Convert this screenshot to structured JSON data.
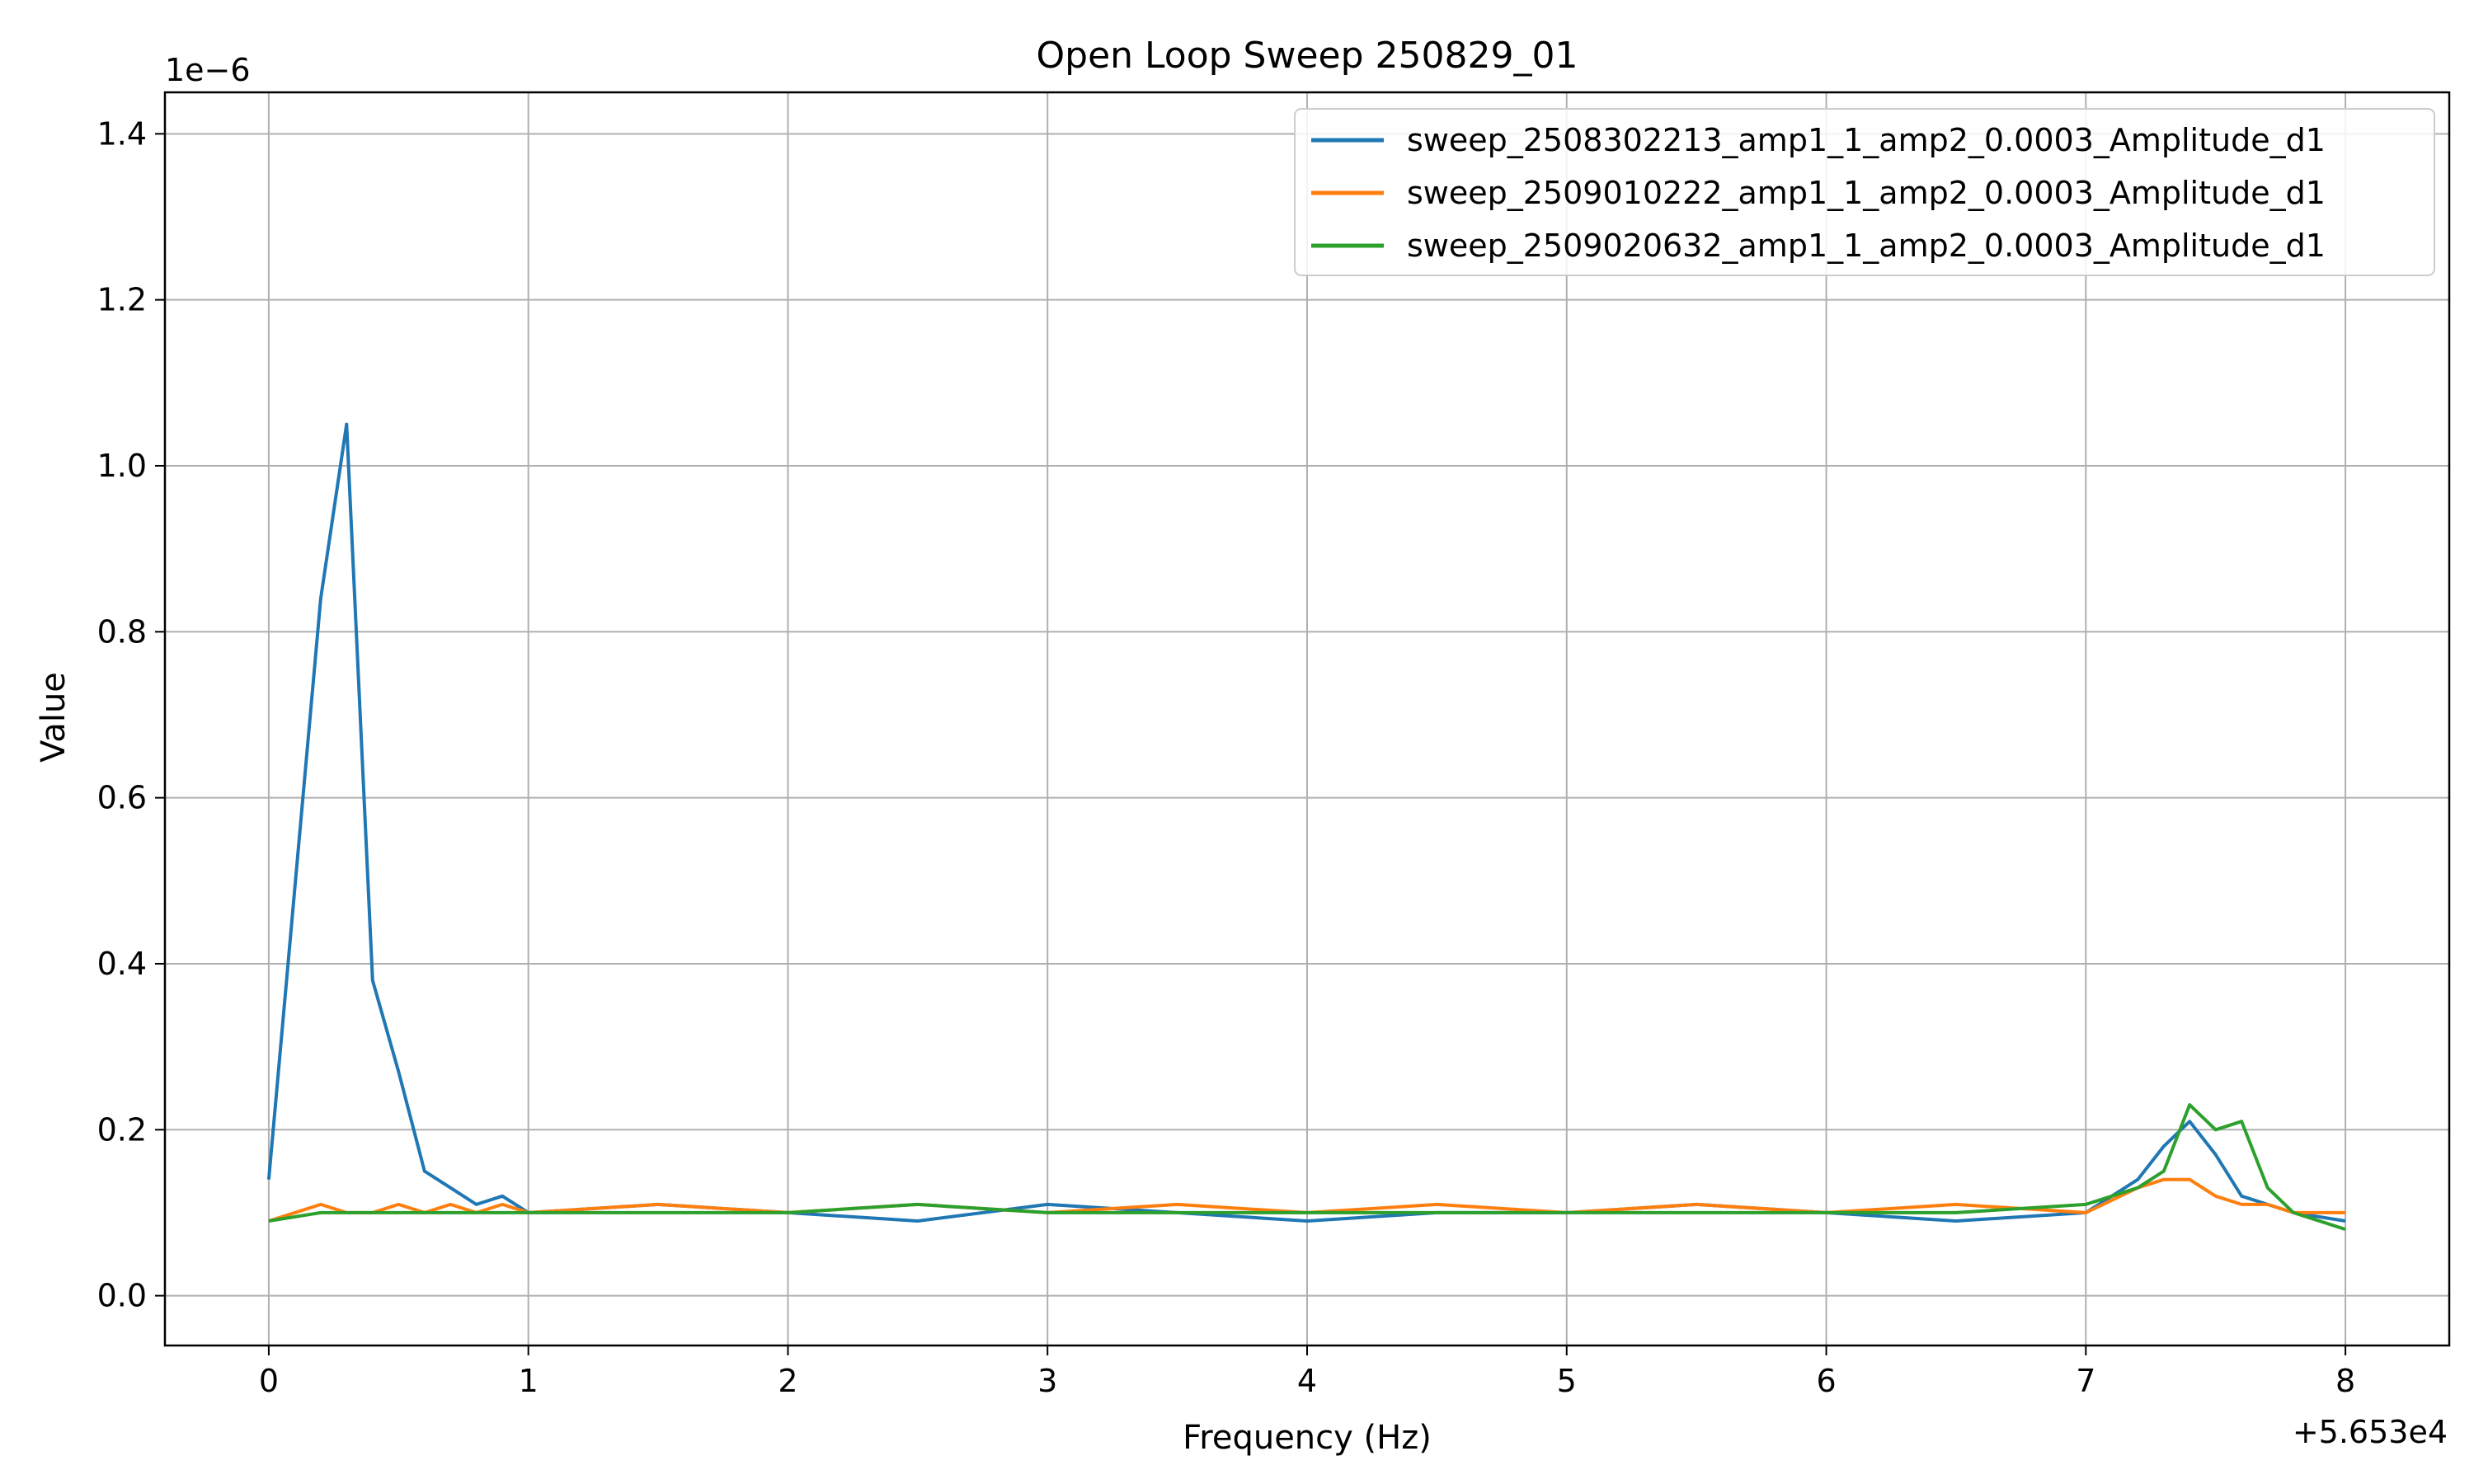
{
  "chart_data": {
    "type": "line",
    "title": "Open Loop Sweep 250829_01",
    "xlabel": "Frequency (Hz)",
    "ylabel": "Value",
    "x_offset_label": "+5.653e4",
    "y_scale_label": "1e−6",
    "xlim": [
      -0.4,
      8.4
    ],
    "ylim": [
      -0.06,
      1.45
    ],
    "x_ticks": [
      0,
      1,
      2,
      3,
      4,
      5,
      6,
      7,
      8
    ],
    "x_tick_labels": [
      "0",
      "1",
      "2",
      "3",
      "4",
      "5",
      "6",
      "7",
      "8"
    ],
    "y_ticks": [
      0.0,
      0.2,
      0.4,
      0.6,
      0.8,
      1.0,
      1.2,
      1.4
    ],
    "y_tick_labels": [
      "0.0",
      "0.2",
      "0.4",
      "0.6",
      "0.8",
      "1.0",
      "1.2",
      "1.4"
    ],
    "grid": true,
    "legend_position": "top-right",
    "x": [
      0.0,
      0.2,
      0.3,
      0.4,
      0.5,
      0.6,
      0.7,
      0.8,
      0.9,
      1.0,
      1.5,
      2.0,
      2.5,
      3.0,
      3.5,
      4.0,
      4.5,
      5.0,
      5.5,
      6.0,
      6.5,
      7.0,
      7.2,
      7.3,
      7.4,
      7.5,
      7.6,
      7.7,
      7.8,
      8.0
    ],
    "series": [
      {
        "name": "sweep_2508302213_amp1_1_amp2_0.0003_Amplitude_d1",
        "color": "#1f77b4",
        "values": [
          0.14,
          0.84,
          1.05,
          0.38,
          0.27,
          0.15,
          0.13,
          0.11,
          0.12,
          0.1,
          0.11,
          0.1,
          0.09,
          0.11,
          0.1,
          0.09,
          0.1,
          0.1,
          0.11,
          0.1,
          0.09,
          0.1,
          0.14,
          0.18,
          0.21,
          0.17,
          0.12,
          0.11,
          0.1,
          0.09
        ]
      },
      {
        "name": "sweep_2509010222_amp1_1_amp2_0.0003_Amplitude_d1",
        "color": "#ff7f0e",
        "values": [
          0.09,
          0.11,
          0.1,
          0.1,
          0.11,
          0.1,
          0.11,
          0.1,
          0.11,
          0.1,
          0.11,
          0.1,
          0.11,
          0.1,
          0.11,
          0.1,
          0.11,
          0.1,
          0.11,
          0.1,
          0.11,
          0.1,
          0.13,
          0.14,
          0.14,
          0.12,
          0.11,
          0.11,
          0.1,
          0.1
        ]
      },
      {
        "name": "sweep_2509020632_amp1_1_amp2_0.0003_Amplitude_d1",
        "color": "#2ca02c",
        "values": [
          0.09,
          0.1,
          0.1,
          0.1,
          0.1,
          0.1,
          0.1,
          0.1,
          0.1,
          0.1,
          0.1,
          0.1,
          0.11,
          0.1,
          0.1,
          0.1,
          0.1,
          0.1,
          0.1,
          0.1,
          0.1,
          0.11,
          0.13,
          0.15,
          0.23,
          0.2,
          0.21,
          0.13,
          0.1,
          0.08
        ]
      }
    ]
  }
}
